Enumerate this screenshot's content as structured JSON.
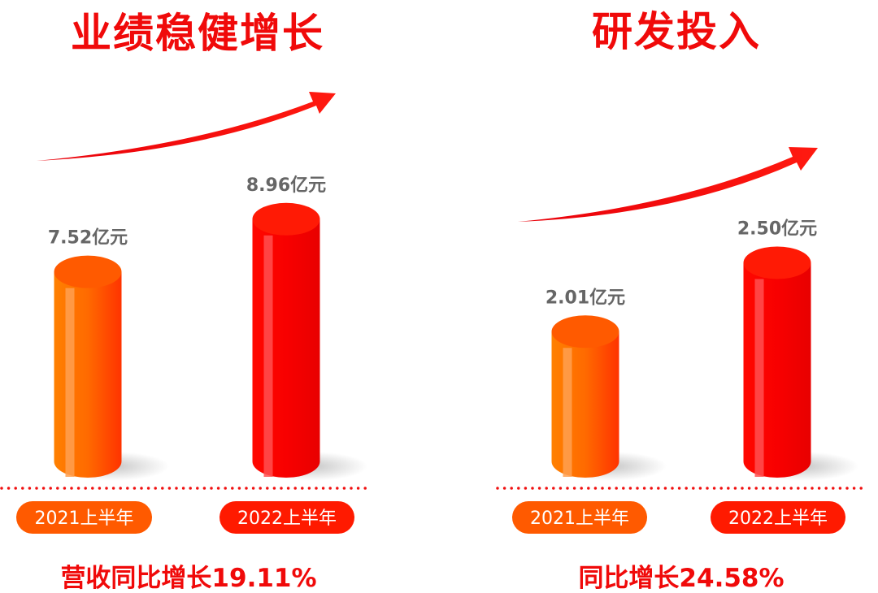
{
  "colors": {
    "orange": "#ff6a00",
    "red": "#f50a00",
    "title_red": "#f00a0a",
    "value_gray": "#666666",
    "pill_orange": "#ff5a00",
    "pill_red": "#ff1a00"
  },
  "chart_data": [
    {
      "type": "bar",
      "title": "业绩稳健增长",
      "categories": [
        "2021上半年",
        "2022上半年"
      ],
      "values": [
        7.52,
        8.96
      ],
      "value_labels": [
        "7.52亿元",
        "8.96亿元"
      ],
      "unit": "亿元",
      "growth_text": "营收同比增长19.11%",
      "style": "3d-cylinder",
      "trend_arrow": "up"
    },
    {
      "type": "bar",
      "title": "研发投入",
      "categories": [
        "2021上半年",
        "2022上半年"
      ],
      "values": [
        2.01,
        2.5
      ],
      "value_labels": [
        "2.01亿元",
        "2.50亿元"
      ],
      "unit": "亿元",
      "growth_text": "同比增长24.58%",
      "style": "3d-cylinder",
      "trend_arrow": "up"
    }
  ]
}
